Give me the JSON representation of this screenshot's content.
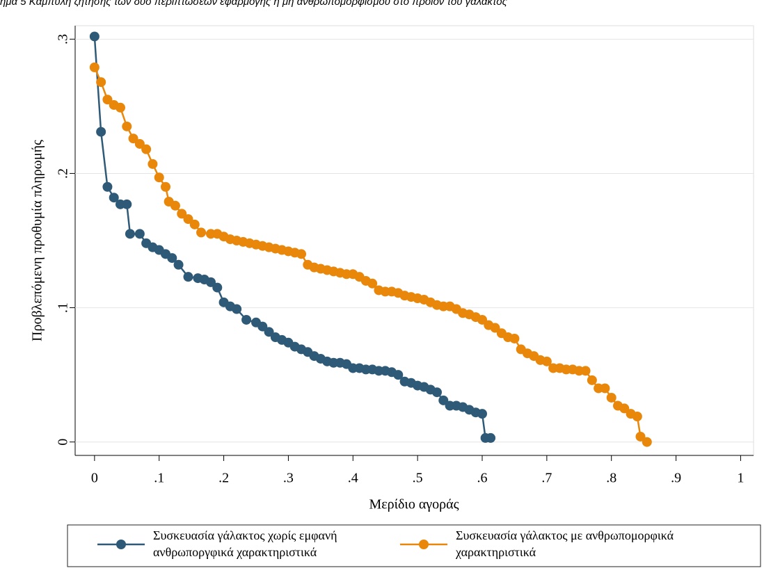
{
  "chart_data": {
    "type": "line",
    "title": "ήμα 5 Καμπύλη ζήτησης των δύο περιπτώσεων εφαρμογής ή μη ανθρωπομορφισμού στο προϊόν του γάλακτος",
    "x_label": "Μερίδιο αγοράς",
    "y_label": "Προβλεπόμενη προθυμία πληρωμής",
    "xlim": [
      -0.03,
      1.02
    ],
    "ylim": [
      -0.01,
      0.31
    ],
    "xticks": [
      0,
      {
        "value": 0.1,
        "label": ".1"
      },
      {
        "value": 0.2,
        "label": ".2"
      },
      {
        "value": 0.3,
        "label": ".3"
      },
      {
        "value": 0.4,
        "label": ".4"
      },
      {
        "value": 0.5,
        "label": ".5"
      },
      {
        "value": 0.6,
        "label": ".6"
      },
      {
        "value": 0.7,
        "label": ".7"
      },
      {
        "value": 0.8,
        "label": ".8"
      },
      {
        "value": 0.9,
        "label": ".9"
      },
      1
    ],
    "yticks": [
      0,
      {
        "value": 0.1,
        "label": ".1"
      },
      {
        "value": 0.2,
        "label": ".2"
      },
      {
        "value": 0.3,
        "label": ".3"
      }
    ],
    "grid": true,
    "legend_position": "bottom",
    "series": [
      {
        "name": [
          "Συσκευασία γάλακτος χωρίς εμφανή",
          "ανθρωποργφικά χαρακτηριστικά"
        ],
        "color": "#2e5a78",
        "x": [
          0,
          0.01,
          0.02,
          0.03,
          0.04,
          0.05,
          0.055,
          0.07,
          0.08,
          0.09,
          0.1,
          0.11,
          0.12,
          0.13,
          0.145,
          0.16,
          0.17,
          0.18,
          0.19,
          0.2,
          0.21,
          0.22,
          0.235,
          0.25,
          0.26,
          0.27,
          0.28,
          0.29,
          0.3,
          0.31,
          0.32,
          0.33,
          0.34,
          0.35,
          0.36,
          0.37,
          0.38,
          0.39,
          0.4,
          0.41,
          0.42,
          0.43,
          0.44,
          0.45,
          0.46,
          0.47,
          0.48,
          0.49,
          0.5,
          0.51,
          0.52,
          0.53,
          0.54,
          0.55,
          0.56,
          0.57,
          0.58,
          0.59,
          0.6,
          0.605,
          0.613
        ],
        "values": [
          0.302,
          0.231,
          0.19,
          0.182,
          0.177,
          0.177,
          0.155,
          0.155,
          0.148,
          0.145,
          0.143,
          0.14,
          0.137,
          0.132,
          0.123,
          0.122,
          0.121,
          0.119,
          0.115,
          0.104,
          0.101,
          0.099,
          0.091,
          0.089,
          0.086,
          0.082,
          0.078,
          0.076,
          0.074,
          0.071,
          0.069,
          0.067,
          0.064,
          0.062,
          0.06,
          0.059,
          0.059,
          0.058,
          0.055,
          0.055,
          0.054,
          0.054,
          0.053,
          0.053,
          0.052,
          0.05,
          0.045,
          0.044,
          0.042,
          0.041,
          0.039,
          0.037,
          0.031,
          0.027,
          0.027,
          0.026,
          0.024,
          0.022,
          0.021,
          0.003,
          0.003
        ]
      },
      {
        "name": [
          "Συσκευασία γάλακτος με ανθρωπομορφικά",
          "χαρακτηριστικά"
        ],
        "color": "#e8870a",
        "x": [
          0,
          0.01,
          0.02,
          0.03,
          0.04,
          0.05,
          0.06,
          0.07,
          0.08,
          0.09,
          0.1,
          0.11,
          0.115,
          0.125,
          0.135,
          0.145,
          0.155,
          0.165,
          0.18,
          0.19,
          0.2,
          0.21,
          0.22,
          0.23,
          0.24,
          0.25,
          0.26,
          0.27,
          0.28,
          0.29,
          0.3,
          0.31,
          0.32,
          0.33,
          0.34,
          0.35,
          0.36,
          0.37,
          0.38,
          0.39,
          0.4,
          0.41,
          0.42,
          0.43,
          0.44,
          0.45,
          0.46,
          0.47,
          0.48,
          0.49,
          0.5,
          0.51,
          0.52,
          0.53,
          0.54,
          0.55,
          0.56,
          0.57,
          0.58,
          0.59,
          0.6,
          0.61,
          0.62,
          0.63,
          0.64,
          0.65,
          0.66,
          0.67,
          0.68,
          0.69,
          0.7,
          0.71,
          0.72,
          0.73,
          0.74,
          0.75,
          0.76,
          0.77,
          0.78,
          0.79,
          0.8,
          0.81,
          0.82,
          0.83,
          0.84,
          0.845,
          0.855
        ],
        "values": [
          0.279,
          0.268,
          0.255,
          0.251,
          0.249,
          0.235,
          0.226,
          0.222,
          0.218,
          0.207,
          0.197,
          0.19,
          0.179,
          0.176,
          0.17,
          0.166,
          0.162,
          0.156,
          0.155,
          0.155,
          0.153,
          0.151,
          0.15,
          0.149,
          0.148,
          0.147,
          0.146,
          0.145,
          0.144,
          0.143,
          0.142,
          0.141,
          0.14,
          0.132,
          0.13,
          0.129,
          0.128,
          0.127,
          0.126,
          0.125,
          0.125,
          0.123,
          0.12,
          0.118,
          0.113,
          0.112,
          0.112,
          0.111,
          0.109,
          0.108,
          0.107,
          0.106,
          0.104,
          0.102,
          0.101,
          0.101,
          0.099,
          0.096,
          0.095,
          0.093,
          0.091,
          0.087,
          0.085,
          0.081,
          0.078,
          0.077,
          0.069,
          0.066,
          0.064,
          0.061,
          0.06,
          0.055,
          0.055,
          0.054,
          0.054,
          0.053,
          0.053,
          0.046,
          0.04,
          0.04,
          0.033,
          0.027,
          0.025,
          0.021,
          0.019,
          0.004,
          0.0
        ]
      }
    ]
  }
}
